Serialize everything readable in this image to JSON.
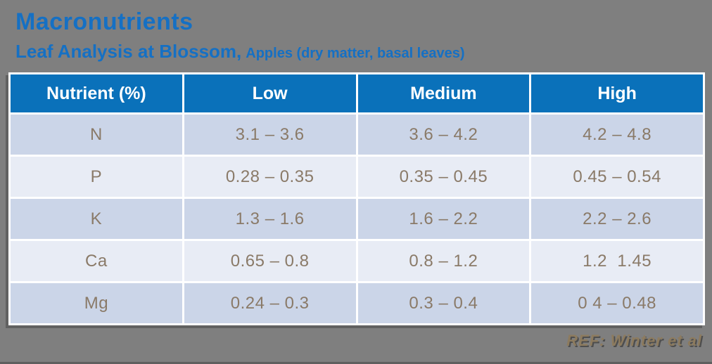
{
  "slide": {
    "title": "Macronutrients",
    "subtitle_main": "Leaf Analysis at Blossom,",
    "subtitle_detail": "Apples (dry matter, basal leaves)",
    "reference": "REF: Winter et al"
  },
  "table": {
    "headers": [
      "Nutrient (%)",
      "Low",
      "Medium",
      "High"
    ],
    "rows": [
      {
        "nutrient": "N",
        "low": "3.1 – 3.6",
        "medium": "3.6 – 4.2",
        "high": "4.2 – 4.8"
      },
      {
        "nutrient": "P",
        "low": "0.28 – 0.35",
        "medium": "0.35 – 0.45",
        "high": "0.45 – 0.54"
      },
      {
        "nutrient": "K",
        "low": "1.3 – 1.6",
        "medium": "1.6 – 2.2",
        "high": "2.2 – 2.6"
      },
      {
        "nutrient": "Ca",
        "low": "0.65 – 0.8",
        "medium": "0.8 – 1.2",
        "high": "1.2  1.45"
      },
      {
        "nutrient": "Mg",
        "low": "0.24 – 0.3",
        "medium": "0.3 – 0.4",
        "high": "0 4 – 0.48"
      }
    ]
  },
  "colors": {
    "background": "#7f7f7f",
    "title_blue": "#1570c4",
    "header_blue": "#0a71ba",
    "row_dark": "#cbd5e8",
    "row_light": "#e8ecf5",
    "cell_text": "#8a7a68",
    "reference_text": "#8d7b5e"
  }
}
